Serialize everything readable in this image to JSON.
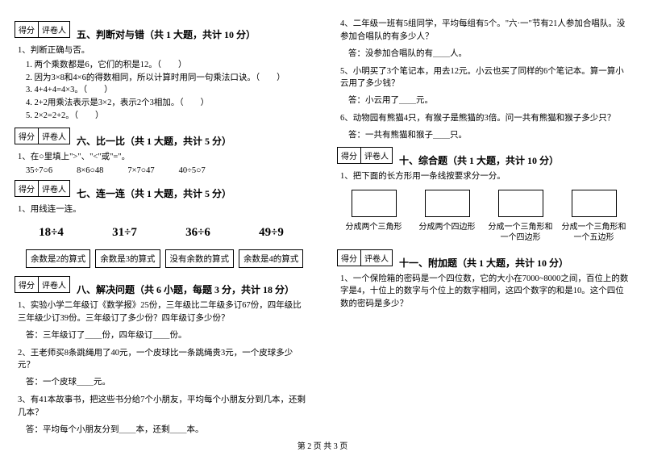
{
  "scorebox": {
    "score": "得分",
    "reviewer": "评卷人"
  },
  "left": {
    "s5": {
      "title": "五、判断对与错（共 1 大题，共计 10 分）",
      "q1": "1、判断正确与否。",
      "items": [
        "1. 两个乘数都是6，它们的积是12。（　　）",
        "2. 因为3×8和4×6的得数相同，所以计算时用同一句乘法口诀。（　　）",
        "3. 4+4+4=4×3。（　　）",
        "4. 2+2用乘法表示是3×2，表示2个3相加。（　　）",
        "5. 2×2=2+2。（　　）"
      ]
    },
    "s6": {
      "title": "六、比一比（共 1 大题，共计 5 分）",
      "q1": "1、在○里填上\">\"、\"<\"或\"=\"。",
      "row": [
        "35÷7○6",
        "8×6○48",
        "7×7○47",
        "40÷5○7"
      ]
    },
    "s7": {
      "title": "七、连一连（共 1 大题，共计 5 分）",
      "q1": "1、用线连一连。",
      "math": [
        "18÷4",
        "31÷7",
        "36÷6",
        "49÷9"
      ],
      "boxes": [
        "余数是2的算式",
        "余数是3的算式",
        "没有余数的算式",
        "余数是4的算式"
      ]
    },
    "s8": {
      "title": "八、解决问题（共 6 小题，每题 3 分，共计 18 分）",
      "q1": "1、实验小学二年级订《数学报》25份，三年级比二年级多订67份，四年级比三年级少订39份。三年级订了多少份？四年级订多少份？",
      "a1": "答：三年级订了＿＿份，四年级订＿＿份。",
      "q2": "2、王老师买8条跳绳用了40元，一个皮球比一条跳绳贵3元，一个皮球多少元？",
      "a2": "答：一个皮球＿＿元。",
      "q3": "3、有41本故事书，把这些书分给7个小朋友，平均每个小朋友分到几本，还剩几本？",
      "a3": "答：平均每个小朋友分到＿＿本，还剩＿＿本。"
    }
  },
  "right": {
    "s8b": {
      "q4": "4、二年级一班有5组同学，平均每组有5个。\"六·一\"节有21人参加合唱队。没参加合唱队的有多少人？",
      "a4": "答：没参加合唱队的有＿＿人。",
      "q5": "5、小明买了3个笔记本，用去12元。小云也买了同样的6个笔记本。算一算小云用了多少钱？",
      "a5": "答：小云用了＿＿元。",
      "q6": "6、动物园有熊猫4只，有猴子是熊猫的3倍。问一共有熊猫和猴子多少只？",
      "a6": "答：一共有熊猫和猴子＿＿只。"
    },
    "s10": {
      "title": "十、综合题（共 1 大题，共计 10 分）",
      "q1": "1、把下面的长方形用一条线按要求分一分。",
      "labels": [
        "分成两个三角形",
        "分成两个四边形",
        "分成一个三角形和一个四边形",
        "分成一个三角形和一个五边形"
      ]
    },
    "s11": {
      "title": "十一、附加题（共 1 大题，共计 10 分）",
      "q1": "1、一个保险箱的密码是一个四位数，它的大小在7000~8000之间，百位上的数字是4，十位上的数字与个位上的数字相同，这四个数字的和是10。这个四位数的密码是多少？"
    }
  },
  "footer": "第 2 页 共 3 页"
}
